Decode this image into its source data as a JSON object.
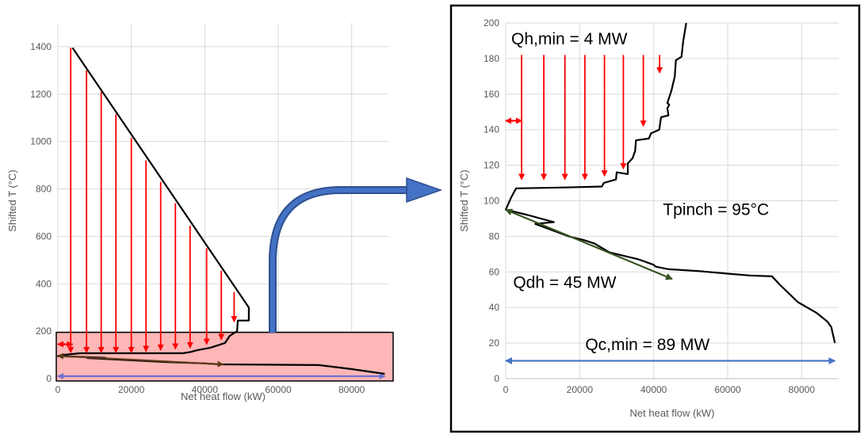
{
  "chart_data": [
    {
      "type": "line",
      "title": "",
      "xlabel": "Net heat flow (kW)",
      "ylabel": "Shifted T (°C)",
      "xlim": [
        0,
        90000
      ],
      "ylim": [
        0,
        1500
      ],
      "x_ticks": [
        0,
        20000,
        40000,
        60000,
        80000
      ],
      "y_ticks": [
        0,
        200,
        400,
        600,
        800,
        1000,
        1200,
        1400
      ],
      "grid": true,
      "highlight_region": {
        "x": [
          0,
          90000
        ],
        "y": [
          0,
          195
        ],
        "color": "#ffb3b3"
      },
      "series": [
        {
          "color": "#000000",
          "points": [
            [
              4000,
              1395
            ],
            [
              52000,
              300
            ],
            [
              52000,
              245
            ],
            [
              49000,
              245
            ],
            [
              48800,
              200
            ],
            [
              46800,
              180
            ],
            [
              45500,
              150
            ],
            [
              43500,
              140
            ],
            [
              41500,
              130
            ],
            [
              38000,
              120
            ],
            [
              36000,
              112
            ],
            [
              34000,
              107
            ],
            [
              16000,
              107
            ],
            [
              6000,
              107
            ],
            [
              1500,
              100
            ],
            [
              0,
              95
            ],
            [
              6000,
              92
            ],
            [
              13000,
              88
            ],
            [
              8000,
              87
            ],
            [
              17000,
              80
            ],
            [
              29000,
              70
            ],
            [
              40000,
              64
            ],
            [
              44000,
              60
            ],
            [
              71000,
              57
            ],
            [
              80000,
              40
            ],
            [
              89000,
              20
            ]
          ]
        }
      ],
      "arrows": [
        {
          "color": "#ff0000",
          "x": 3500,
          "y1": 1395,
          "y2": 110
        },
        {
          "color": "#ff0000",
          "x": 7800,
          "y1": 1300,
          "y2": 110
        },
        {
          "color": "#ff0000",
          "x": 11800,
          "y1": 1210,
          "y2": 110
        },
        {
          "color": "#ff0000",
          "x": 15800,
          "y1": 1115,
          "y2": 110
        },
        {
          "color": "#ff0000",
          "x": 20000,
          "y1": 1015,
          "y2": 110
        },
        {
          "color": "#ff0000",
          "x": 24000,
          "y1": 920,
          "y2": 115
        },
        {
          "color": "#ff0000",
          "x": 28000,
          "y1": 830,
          "y2": 120
        },
        {
          "color": "#ff0000",
          "x": 32000,
          "y1": 740,
          "y2": 125
        },
        {
          "color": "#ff0000",
          "x": 36000,
          "y1": 645,
          "y2": 130
        },
        {
          "color": "#ff0000",
          "x": 40500,
          "y1": 550,
          "y2": 145
        },
        {
          "color": "#ff0000",
          "x": 44500,
          "y1": 455,
          "y2": 165
        },
        {
          "color": "#ff0000",
          "x": 48000,
          "y1": 365,
          "y2": 240
        }
      ],
      "double_arrows": [
        {
          "color": "#ff0000",
          "x1": 0,
          "y1": 145,
          "x2": 4000,
          "y2": 145
        },
        {
          "color": "#5e3b1d",
          "x1": 0,
          "y1": 96,
          "x2": 45000,
          "y2": 60
        },
        {
          "color": "#7070d0",
          "x1": 0,
          "y1": 10,
          "x2": 89000,
          "y2": 10
        }
      ]
    },
    {
      "type": "line",
      "title": "",
      "xlabel": "Net heat flow (kW)",
      "ylabel": "Shifted T (°C)",
      "xlim": [
        0,
        90000
      ],
      "ylim": [
        0,
        200
      ],
      "x_ticks": [
        0,
        20000,
        40000,
        60000,
        80000
      ],
      "y_ticks": [
        0,
        20,
        40,
        60,
        80,
        100,
        120,
        140,
        160,
        180,
        200
      ],
      "grid": true,
      "series": [
        {
          "color": "#000000",
          "points": [
            [
              48800,
              200
            ],
            [
              48000,
              190
            ],
            [
              47500,
              181
            ],
            [
              46000,
              179
            ],
            [
              45700,
              170
            ],
            [
              44800,
              162
            ],
            [
              43700,
              155
            ],
            [
              44200,
              154
            ],
            [
              43700,
              152
            ],
            [
              44000,
              148
            ],
            [
              42000,
              147
            ],
            [
              41500,
              140
            ],
            [
              39300,
              138
            ],
            [
              38700,
              135
            ],
            [
              35200,
              134
            ],
            [
              35000,
              128
            ],
            [
              34300,
              124
            ],
            [
              33000,
              121
            ],
            [
              33000,
              115
            ],
            [
              30000,
              116
            ],
            [
              29800,
              112
            ],
            [
              26500,
              110
            ],
            [
              26000,
              108
            ],
            [
              16000,
              107.5
            ],
            [
              2800,
              107
            ],
            [
              1500,
              102
            ],
            [
              0,
              95
            ],
            [
              6000,
              92
            ],
            [
              13000,
              88
            ],
            [
              8000,
              87
            ],
            [
              17000,
              80
            ],
            [
              21000,
              78
            ],
            [
              24000,
              76
            ],
            [
              28000,
              71
            ],
            [
              36000,
              67
            ],
            [
              40000,
              64
            ],
            [
              40500,
              63
            ],
            [
              44000,
              61.5
            ],
            [
              52000,
              60.5
            ],
            [
              60000,
              59
            ],
            [
              66000,
              58
            ],
            [
              72000,
              57.5
            ],
            [
              74000,
              53
            ],
            [
              78000,
              45
            ],
            [
              79000,
              43
            ],
            [
              84000,
              37
            ],
            [
              87000,
              32
            ],
            [
              88000,
              29
            ],
            [
              89000,
              20
            ]
          ]
        }
      ],
      "annotations": [
        {
          "text": "Qh,min = 4 MW",
          "x": 1500,
          "y": 188
        },
        {
          "text": "Tpinch = 95°C",
          "x": 42500,
          "y": 92
        },
        {
          "text": "Qdh = 45 MW",
          "x": 2000,
          "y": 51
        },
        {
          "text": "Qc,min = 89 MW",
          "x": 21500,
          "y": 16
        }
      ],
      "arrows": [
        {
          "color": "#ff0000",
          "x": 4300,
          "y1": 182,
          "y2": 112
        },
        {
          "color": "#ff0000",
          "x": 10300,
          "y1": 182,
          "y2": 112
        },
        {
          "color": "#ff0000",
          "x": 16000,
          "y1": 182,
          "y2": 112
        },
        {
          "color": "#ff0000",
          "x": 21400,
          "y1": 182,
          "y2": 112
        },
        {
          "color": "#ff0000",
          "x": 26700,
          "y1": 182,
          "y2": 114
        },
        {
          "color": "#ff0000",
          "x": 31800,
          "y1": 182,
          "y2": 118
        },
        {
          "color": "#ff0000",
          "x": 37200,
          "y1": 182,
          "y2": 142
        },
        {
          "color": "#ff0000",
          "x": 41600,
          "y1": 182,
          "y2": 172
        }
      ],
      "double_arrows": [
        {
          "color": "#ff0000",
          "x1": 0,
          "y1": 145,
          "x2": 4300,
          "y2": 145
        },
        {
          "color": "#375623",
          "x1": 0,
          "y1": 95,
          "x2": 45000,
          "y2": 56
        },
        {
          "color": "#4472c4",
          "x1": 0,
          "y1": 10,
          "x2": 89000,
          "y2": 10
        }
      ]
    }
  ]
}
